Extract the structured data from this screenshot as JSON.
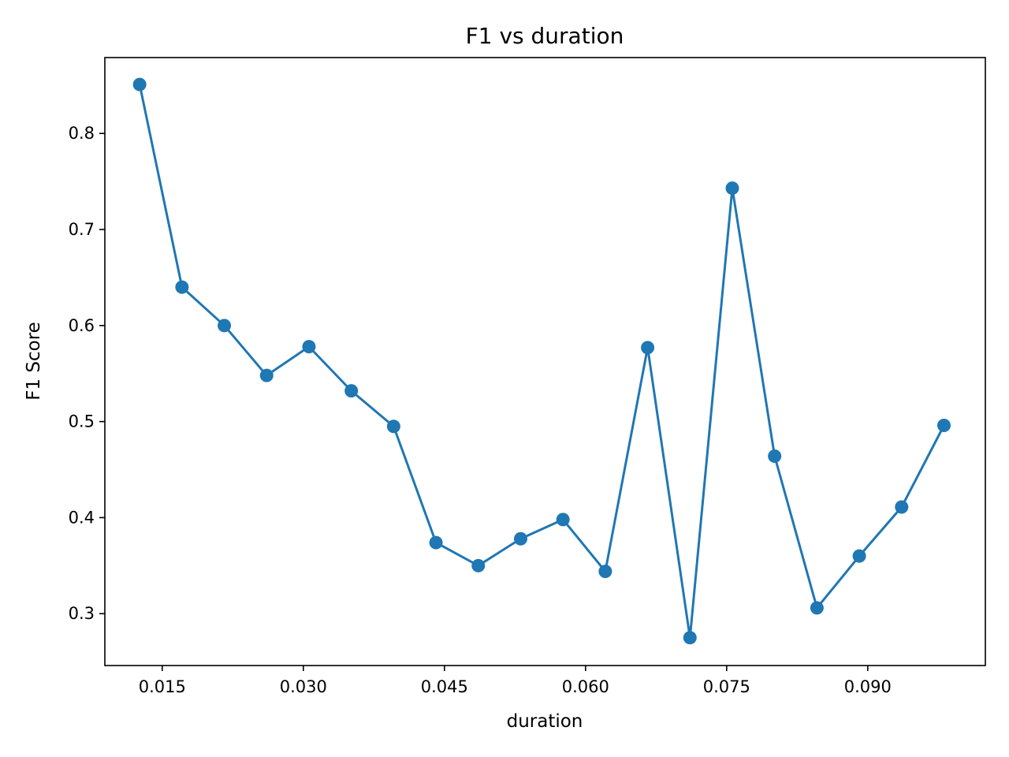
{
  "chart_data": {
    "type": "line",
    "title": "F1 vs duration",
    "xlabel": "duration",
    "ylabel": "F1 Score",
    "xlim": [
      0.0089,
      0.1025
    ],
    "ylim": [
      0.246,
      0.879
    ],
    "xticks": [
      0.015,
      0.03,
      0.045,
      0.06,
      0.075,
      0.09
    ],
    "xtick_labels": [
      "0.015",
      "0.030",
      "0.045",
      "0.060",
      "0.075",
      "0.090"
    ],
    "yticks": [
      0.3,
      0.4,
      0.5,
      0.6,
      0.7,
      0.8
    ],
    "ytick_labels": [
      "0.3",
      "0.4",
      "0.5",
      "0.6",
      "0.7",
      "0.8"
    ],
    "grid": false,
    "color": "#1f77b4",
    "marker": "circle",
    "series": [
      {
        "x": [
          0.0126,
          0.0171,
          0.0216,
          0.0261,
          0.0306,
          0.0351,
          0.0396,
          0.0441,
          0.0486,
          0.0531,
          0.0576,
          0.0621,
          0.0666,
          0.0711,
          0.0756,
          0.0801,
          0.0846,
          0.0891,
          0.0936,
          0.0981
        ],
        "y": [
          0.851,
          0.64,
          0.6,
          0.548,
          0.578,
          0.532,
          0.495,
          0.374,
          0.35,
          0.378,
          0.398,
          0.344,
          0.577,
          0.275,
          0.743,
          0.464,
          0.306,
          0.36,
          0.411,
          0.496
        ]
      }
    ]
  }
}
